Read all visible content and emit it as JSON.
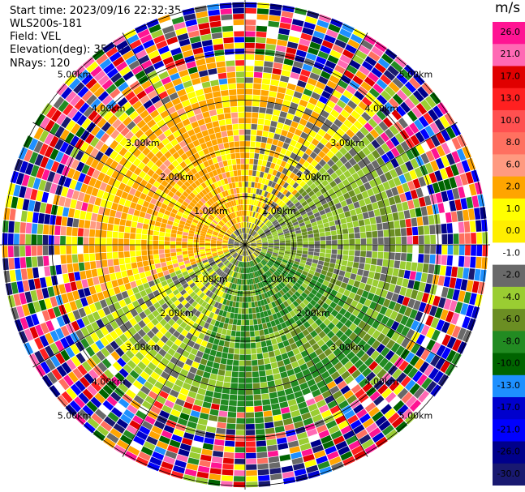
{
  "header": {
    "start_time": "Start time: 2023/09/16 22:32:35",
    "instrument": "WLS200s-181",
    "field": "Field: VEL",
    "elevation": "Elevation(deg): 35.30",
    "nrays": "NRays: 120"
  },
  "colorbar": {
    "unit": "m/s",
    "ticks": [
      "26.0",
      "21.0",
      "17.0",
      "13.0",
      "10.0",
      "8.0",
      "6.0",
      "2.0",
      "1.0",
      "0.0",
      "-1.0",
      "-2.0",
      "-4.0",
      "-6.0",
      "-8.0",
      "-10.0",
      "-13.0",
      "-17.0",
      "-21.0",
      "-26.0",
      "-30.0"
    ],
    "colors": [
      "#ff1493",
      "#ff69b4",
      "#e00000",
      "#ff2020",
      "#ff5050",
      "#ff7060",
      "#ff9a80",
      "#ffa500",
      "#ffff00",
      "#ffee00",
      "#ffffff",
      "#696969",
      "#9acd32",
      "#6b8e23",
      "#228b22",
      "#006400",
      "#1e90ff",
      "#0000cd",
      "#0000ff",
      "#00008b",
      "#191970"
    ]
  },
  "chart_data": {
    "type": "heatmap",
    "title": "",
    "field": "VEL",
    "units": "m/s",
    "elevation_deg": 35.3,
    "n_rays": 120,
    "range_rings_km": [
      1.0,
      2.0,
      3.0,
      4.0,
      5.0
    ],
    "ring_labels": [
      "1.00km",
      "2.00km",
      "3.00km",
      "4.00km",
      "5.00km"
    ],
    "color_scale": {
      "min": -30.0,
      "max": 26.0,
      "ticks": [
        26.0,
        21.0,
        17.0,
        13.0,
        10.0,
        8.0,
        6.0,
        2.0,
        1.0,
        0.0,
        -1.0,
        -2.0,
        -4.0,
        -6.0,
        -8.0,
        -10.0,
        -13.0,
        -17.0,
        -21.0,
        -26.0,
        -30.0
      ]
    },
    "pattern_summary": "Noisy (mixed colors) beyond ~3 km; inner region: positive (yellow/orange) toward north-west, near zero (gray) near center and east, negative (olive/green) toward south and south-east."
  }
}
